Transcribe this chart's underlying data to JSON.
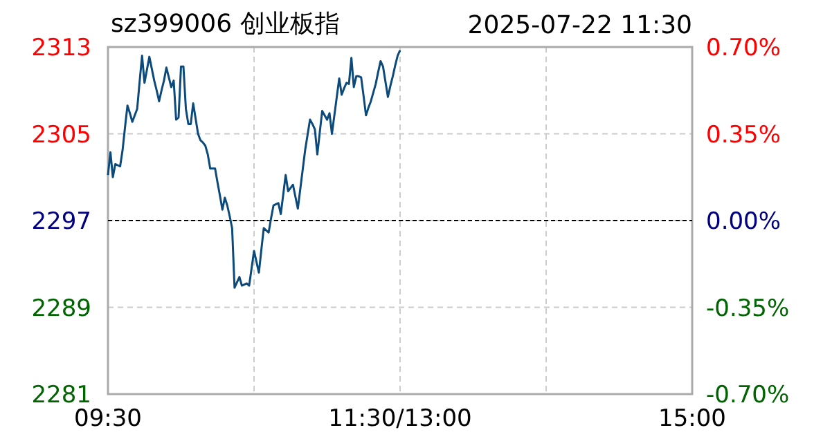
{
  "chart_data": {
    "type": "line",
    "title": "sz399006 创业板指",
    "subtitle": "2025-07-22  11:30",
    "categories": [
      "09:30",
      null,
      null,
      null,
      null,
      null,
      null,
      null,
      null,
      null,
      null,
      null,
      null,
      null,
      null,
      null,
      null,
      null,
      null,
      null,
      null,
      null,
      null,
      null,
      null,
      null,
      null,
      null,
      null,
      null,
      null,
      null,
      null,
      null,
      null,
      null,
      null,
      null,
      null,
      null,
      null,
      null,
      null,
      null,
      null,
      null,
      null,
      null,
      null,
      null,
      null,
      null,
      null,
      null,
      null,
      null,
      null,
      null,
      null,
      null,
      null,
      null,
      null,
      null,
      null,
      null,
      null,
      null,
      null,
      null,
      null,
      null,
      null,
      null,
      null,
      null,
      null,
      null,
      null,
      null,
      null,
      null,
      null,
      null,
      null,
      null,
      null,
      null,
      null,
      null,
      null,
      null,
      null,
      null,
      null,
      null,
      null,
      null,
      null,
      null,
      null,
      null,
      null,
      null,
      null,
      null,
      null,
      null,
      null,
      null,
      null,
      null,
      null,
      null,
      null,
      null,
      null,
      null,
      null,
      null,
      "11:30/13:00",
      null,
      null,
      null,
      null,
      null,
      null,
      null,
      null,
      null,
      null,
      null,
      null,
      null,
      null,
      null,
      null,
      null,
      null,
      null,
      null,
      null,
      null,
      null,
      null,
      null,
      null,
      null,
      null,
      null,
      null,
      null,
      null,
      null,
      null,
      null,
      null,
      null,
      null,
      null,
      null,
      null,
      null,
      null,
      null,
      null,
      null,
      null,
      null,
      null,
      null,
      null,
      null,
      null,
      null,
      null,
      null,
      null,
      null,
      null,
      null,
      null,
      null,
      null,
      null,
      null,
      null,
      null,
      null,
      null,
      null,
      null,
      null,
      null,
      null,
      null,
      null,
      null,
      null,
      null,
      null,
      null,
      null,
      null,
      null,
      null,
      null,
      null,
      null,
      null,
      null,
      null,
      null,
      null,
      null,
      null,
      null,
      null,
      null,
      null,
      null,
      null,
      null,
      null,
      null,
      null,
      null,
      null,
      null,
      null,
      null,
      null,
      null,
      null,
      null,
      null,
      null,
      null,
      null,
      null,
      "15:00"
    ],
    "ylim": [
      2281,
      2313
    ],
    "yticks": [
      2281,
      2289,
      2297,
      2305,
      2313
    ],
    "y2lim": [
      -0.7,
      0.7
    ],
    "y2ticks": [
      {
        "value": -0.7,
        "label": "-0.70%"
      },
      {
        "value": -0.35,
        "label": "-0.35%"
      },
      {
        "value": 0,
        "label": "0.00%"
      },
      {
        "value": 0.35,
        "label": "0.35%"
      },
      {
        "value": 0.7,
        "label": "0.70%"
      }
    ],
    "grid": true,
    "line_style": "solid",
    "marker": "none",
    "ref_lines": [
      {
        "axis": "y",
        "value": 2297,
        "color": "#000000",
        "line_style": "dashed"
      }
    ],
    "series": [
      {
        "color": "#0b4a7a",
        "values": [
          2301.2,
          2303.3,
          2301.0,
          2302.2,
          2302.1,
          2302.0,
          2303.5,
          2305.6,
          2307.6,
          2306.9,
          2306.1,
          2306.7,
          2307.3,
          2309.8,
          2312.2,
          2309.7,
          2310.9,
          2312.1,
          2311.0,
          2309.9,
          2309.0,
          2308.0,
          2309.0,
          2309.9,
          2311.1,
          2310.2,
          2309.3,
          2309.9,
          2306.3,
          2306.5,
          2311.2,
          2311.2,
          2307.3,
          2305.9,
          2305.9,
          2307.8,
          2306.4,
          2305.0,
          2304.4,
          2304.2,
          2303.9,
          2303.1,
          2301.8,
          2301.8,
          2301.8,
          2300.5,
          2299.3,
          2298.0,
          2299.1,
          2298.4,
          2297.4,
          2296.3,
          2290.8,
          2291.3,
          2291.8,
          2291.0,
          2291.1,
          2291.2,
          2291.0,
          2292.6,
          2294.2,
          2293.2,
          2292.2,
          2294.3,
          2296.3,
          2296.1,
          2295.9,
          2297.2,
          2298.4,
          2298.5,
          2298.6,
          2297.6,
          2299.4,
          2301.2,
          2299.7,
          2300.0,
          2300.3,
          2299.2,
          2298.1,
          2299.9,
          2301.7,
          2303.5,
          2304.9,
          2306.3,
          2305.9,
          2305.4,
          2303.1,
          2305.1,
          2307.1,
          2306.7,
          2306.3,
          2306.9,
          2305.0,
          2306.7,
          2308.4,
          2310.1,
          2308.6,
          2309.2,
          2309.7,
          2309.6,
          2312.0,
          2309.3,
          2310.3,
          2310.3,
          2310.2,
          2308.5,
          2306.7,
          2307.4,
          2308.0,
          2308.8,
          2309.6,
          2310.7,
          2311.7,
          2311.2,
          2309.8,
          2308.4,
          2309.4,
          2310.3,
          2311.3,
          2312.2,
          2312.7,
          null,
          null,
          null,
          null,
          null,
          null,
          null,
          null,
          null,
          null,
          null,
          null,
          null,
          null,
          null,
          null,
          null,
          null,
          null,
          null,
          null,
          null,
          null,
          null,
          null,
          null,
          null,
          null,
          null,
          null,
          null,
          null,
          null,
          null,
          null,
          null,
          null,
          null,
          null,
          null,
          null,
          null,
          null,
          null,
          null,
          null,
          null,
          null,
          null,
          null,
          null,
          null,
          null,
          null,
          null,
          null,
          null,
          null,
          null,
          null,
          null,
          null,
          null,
          null,
          null,
          null,
          null,
          null,
          null,
          null,
          null,
          null,
          null,
          null,
          null,
          null,
          null,
          null,
          null,
          null,
          null,
          null,
          null,
          null,
          null,
          null,
          null,
          null,
          null,
          null,
          null,
          null,
          null,
          null,
          null,
          null,
          null,
          null,
          null,
          null,
          null,
          null,
          null,
          null,
          null,
          null,
          null,
          null,
          null,
          null,
          null,
          null,
          null,
          null,
          null,
          null,
          null,
          null,
          null,
          null
        ]
      }
    ]
  }
}
